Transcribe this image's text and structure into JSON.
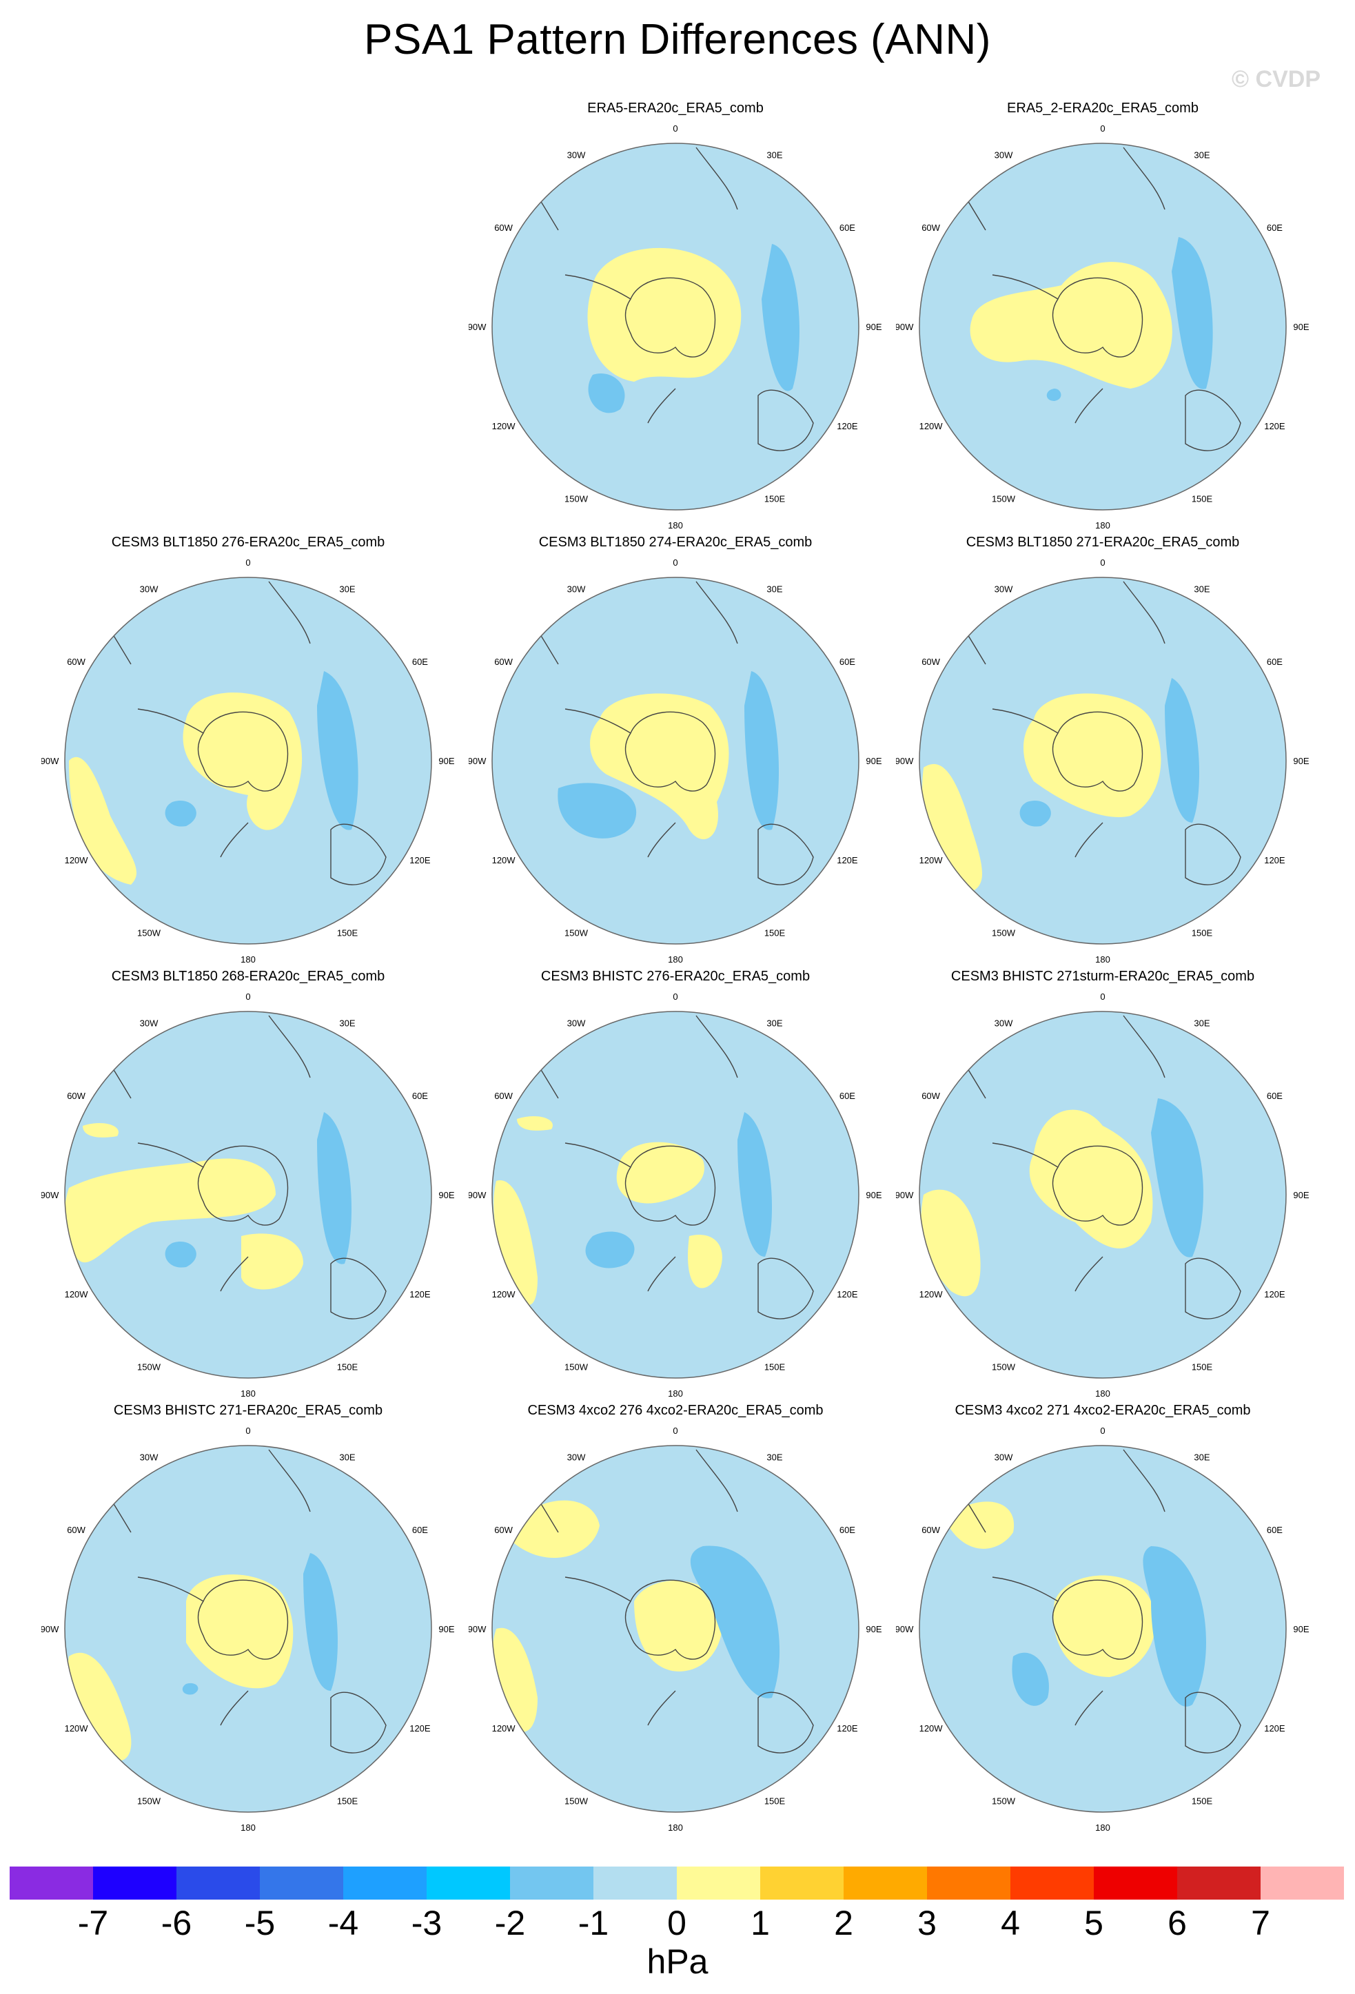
{
  "title": "PSA1 Pattern Differences (ANN)",
  "watermark": "© CVDP",
  "colors": {
    "neutral_neg": "#b3def0",
    "neg": "#73c6f0",
    "pos": "#fffa96",
    "coast": "#444444",
    "ring": "#666666"
  },
  "lon_labels": [
    "0",
    "30E",
    "60E",
    "90E",
    "120E",
    "150E",
    "180",
    "150W",
    "120W",
    "90W",
    "60W",
    "30W"
  ],
  "panels": [
    {
      "title": "ERA5-ERA20c_ERA5_comb"
    },
    {
      "title": "ERA5_2-ERA20c_ERA5_comb"
    },
    {
      "title": "CESM3 BLT1850 276-ERA20c_ERA5_comb"
    },
    {
      "title": "CESM3 BLT1850 274-ERA20c_ERA5_comb"
    },
    {
      "title": "CESM3 BLT1850 271-ERA20c_ERA5_comb"
    },
    {
      "title": "CESM3 BLT1850 268-ERA20c_ERA5_comb"
    },
    {
      "title": "CESM3 BHISTC 276-ERA20c_ERA5_comb"
    },
    {
      "title": "CESM3 BHISTC 271sturm-ERA20c_ERA5_comb"
    },
    {
      "title": "CESM3 BHISTC 271-ERA20c_ERA5_comb"
    },
    {
      "title": "CESM3 4xco2 276 4xco2-ERA20c_ERA5_comb"
    },
    {
      "title": "CESM3 4xco2 271 4xco2-ERA20c_ERA5_comb"
    }
  ],
  "colorbar": {
    "colors": [
      "#8a2be2",
      "#1e00ff",
      "#2a4bea",
      "#3476ea",
      "#1ea0ff",
      "#00c8ff",
      "#73c6f0",
      "#b3def0",
      "#fffa96",
      "#ffd232",
      "#ffaa00",
      "#ff7800",
      "#ff3c00",
      "#ee0000",
      "#d22020",
      "#ffb4b4"
    ],
    "ticks": [
      "-7",
      "-6",
      "-5",
      "-4",
      "-3",
      "-2",
      "-1",
      "0",
      "1",
      "2",
      "3",
      "4",
      "5",
      "6",
      "7"
    ],
    "units": "hPa"
  }
}
